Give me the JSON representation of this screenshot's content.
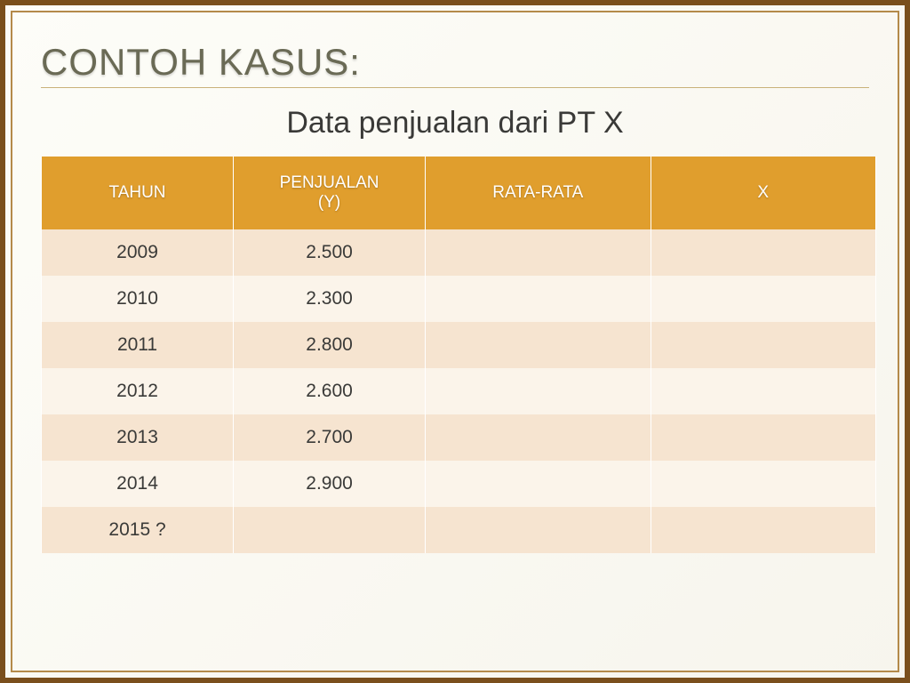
{
  "heading": "Contoh Kasus:",
  "subtitle": "Data penjualan dari PT X",
  "table": {
    "header_bg": "#e09e2d",
    "header_text_color": "#ffffff",
    "row_odd_bg": "#f6e4d0",
    "row_even_bg": "#fbf4ea",
    "cell_text_color": "#3a3a38",
    "columns": [
      {
        "key": "year",
        "label": "TAHUN",
        "class": "col-year"
      },
      {
        "key": "sales",
        "label": "PENJUALAN\n(Y)",
        "class": "col-sales"
      },
      {
        "key": "avg",
        "label": "RATA-RATA",
        "class": "col-avg"
      },
      {
        "key": "x",
        "label": "X",
        "class": "col-x"
      }
    ],
    "rows": [
      {
        "year": "2009",
        "sales": "2.500",
        "avg": "",
        "x": ""
      },
      {
        "year": "2010",
        "sales": "2.300",
        "avg": "",
        "x": ""
      },
      {
        "year": "2011",
        "sales": "2.800",
        "avg": "",
        "x": ""
      },
      {
        "year": "2012",
        "sales": "2.600",
        "avg": "",
        "x": ""
      },
      {
        "year": "2013",
        "sales": "2.700",
        "avg": "",
        "x": ""
      },
      {
        "year": "2014",
        "sales": "2.900",
        "avg": "",
        "x": ""
      },
      {
        "year": "2015   ?",
        "sales": "",
        "avg": "",
        "x": ""
      }
    ]
  },
  "frame": {
    "outer_border_color": "#7a4f1c",
    "inner_border_color": "#b48a4a",
    "rule_color": "#c9b27a"
  }
}
